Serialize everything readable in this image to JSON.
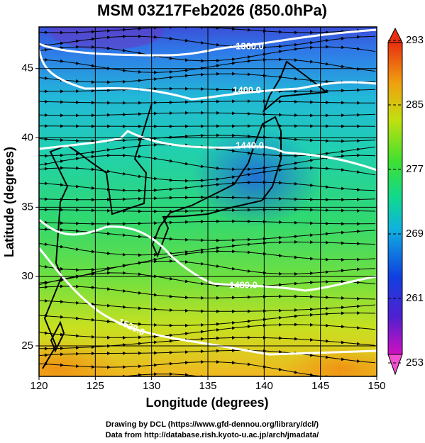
{
  "chart_data": {
    "type": "map",
    "title": "MSM 03Z17Feb2026 (850.0hPa)",
    "xlabel": "Longitude (degrees)",
    "ylabel": "Latitude (degrees)",
    "xlim": [
      120,
      150
    ],
    "ylim": [
      22.8,
      48
    ],
    "xticks": [
      120,
      125,
      130,
      135,
      140,
      145,
      150
    ],
    "yticks": [
      25,
      30,
      35,
      40,
      45
    ],
    "grid": true,
    "colorbar": {
      "lim": [
        253,
        293
      ],
      "ticks": [
        253,
        261,
        269,
        277,
        285,
        293
      ]
    },
    "contour_labels": [
      "1360.0",
      "1400.0",
      "1440.0",
      "1480.0",
      "1520.0"
    ]
  },
  "footer": [
    "Drawing by DCL (https://www.gfd-dennou.org/library/dcl/)",
    "Data from http://database.rish.kyoto-u.ac.jp/arch/jmadata/"
  ]
}
